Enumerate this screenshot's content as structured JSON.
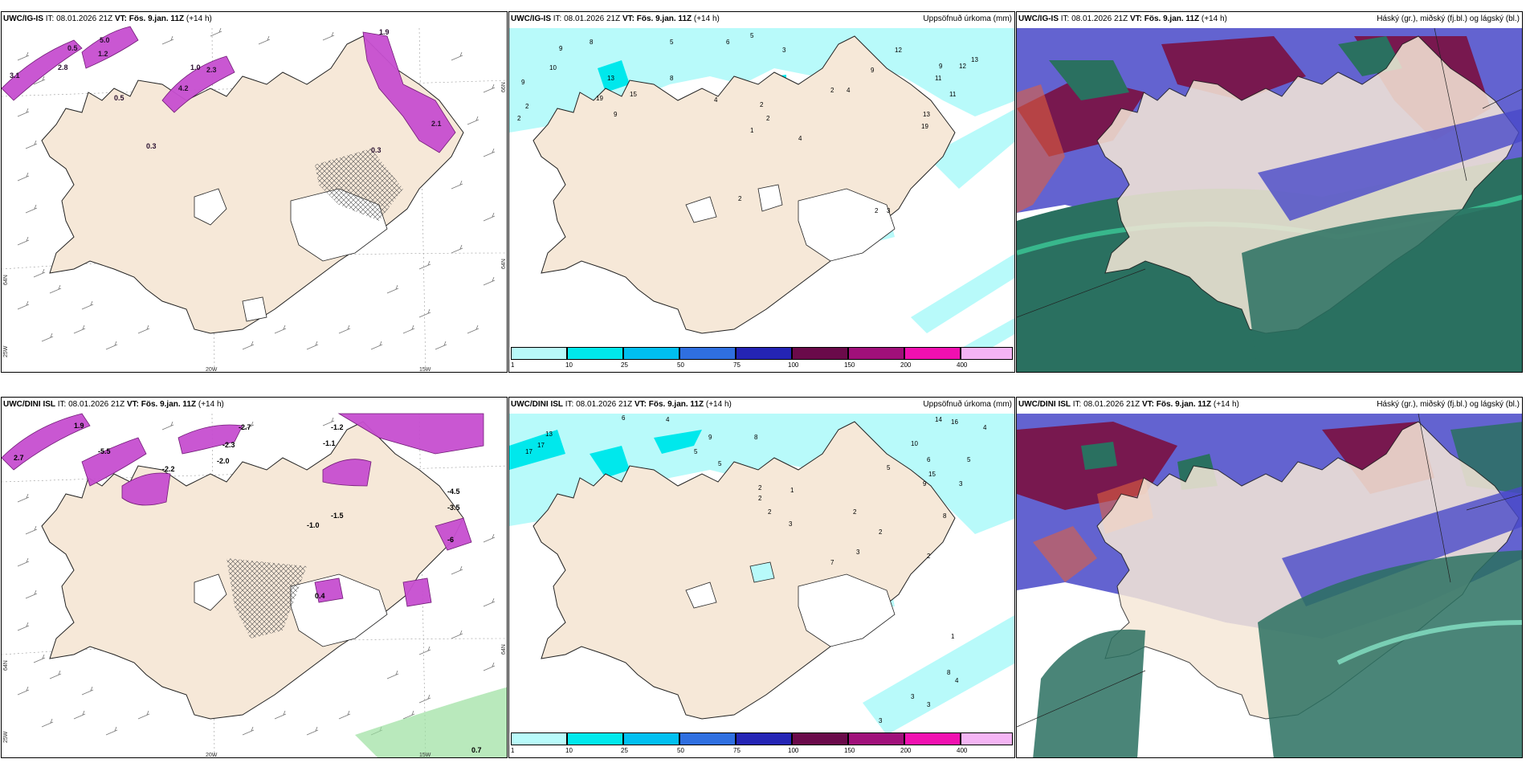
{
  "panels": [
    {
      "model": "UWC/IG-IS",
      "it_label": "IT:",
      "it": "08.01.2026 21Z",
      "vt_label": "VT:",
      "vt": "Fös. 9.jan. 11Z",
      "lead": "(+14 h)",
      "right": ""
    },
    {
      "model": "UWC/IG-IS",
      "it_label": "IT:",
      "it": "08.01.2026 21Z",
      "vt_label": "VT:",
      "vt": "Fös. 9.jan. 11Z",
      "lead": "(+14 h)",
      "right": "Uppsöfnuð úrkoma (mm)"
    },
    {
      "model": "UWC/IG-IS",
      "it_label": "IT:",
      "it": "08.01.2026 21Z",
      "vt_label": "VT:",
      "vt": "Fös. 9.jan. 11Z",
      "lead": "(+14 h)",
      "right": "Háský (gr.), miðský (fj.bl.) og lágský (bl.)"
    },
    {
      "model": "UWC/DINI ISL",
      "it_label": "IT:",
      "it": "08.01.2026 21Z",
      "vt_label": "VT:",
      "vt": "Fös. 9.jan. 11Z",
      "lead": "(+14 h)",
      "right": ""
    },
    {
      "model": "UWC/DINI ISL",
      "it_label": "IT:",
      "it": "08.01.2026 21Z",
      "vt_label": "VT:",
      "vt": "Fös. 9.jan. 11Z",
      "lead": "(+14 h)",
      "right": "Uppsöfnuð úrkoma (mm)"
    },
    {
      "model": "UWC/DINI ISL",
      "it_label": "IT:",
      "it": "08.01.2026 21Z",
      "vt_label": "VT:",
      "vt": "Fös. 9.jan. 11Z",
      "lead": "(+14 h)",
      "right": "Háský (gr.), miðský (fj.bl.) og lágský (bl.)"
    }
  ],
  "coords": {
    "lon_20w": "20W",
    "lon_15w": "15W",
    "lat_66n": "66N",
    "lat_64n": "64N",
    "lon_25w": "25W"
  },
  "colorbar": {
    "ticks": [
      "1",
      "10",
      "25",
      "50",
      "75",
      "100",
      "150",
      "200",
      "400"
    ],
    "colors": [
      "#b8fafa",
      "#00e8ec",
      "#00bff0",
      "#2f6fe0",
      "#2424b4",
      "#6a0a4a",
      "#a0107a",
      "#f010b0",
      "#f4b4f4"
    ]
  },
  "temp_labels_top": [
    "3.1",
    "2.8",
    "5.0",
    "0.5",
    "1.2",
    "2.3",
    "1.0",
    "4.2",
    "0.3",
    "2.1",
    "1.9",
    "0.5",
    "0.3"
  ],
  "temp_labels_bottom": [
    "1.9",
    "2.7",
    "-5.5",
    "-2.2",
    "-2.0",
    "-2.7",
    "-1.2",
    "-1.1",
    "-2.3",
    "-1.0",
    "-1.5",
    "-4.5",
    "-3.5",
    "-6",
    "0.4",
    "0.7"
  ],
  "precip_labels_top": [
    "9",
    "8",
    "10",
    "9",
    "2",
    "2",
    "19",
    "13",
    "15",
    "9",
    "8",
    "5",
    "3",
    "6",
    "4",
    "2",
    "1",
    "2",
    "4",
    "12",
    "9",
    "11",
    "13",
    "19",
    "12",
    "13",
    "11",
    "9",
    "4",
    "2",
    "5",
    "2",
    "2",
    "3"
  ],
  "precip_labels_bottom": [
    "13",
    "17",
    "17",
    "6",
    "4",
    "9",
    "8",
    "5",
    "5",
    "2",
    "2",
    "1",
    "2",
    "3",
    "2",
    "7",
    "3",
    "2",
    "6",
    "9",
    "5",
    "10",
    "8",
    "15",
    "14",
    "16",
    "4",
    "5",
    "3",
    "2",
    "1",
    "8",
    "4",
    "3",
    "3",
    "3"
  ],
  "colors": {
    "land": "#f6e8d8",
    "precip_light": "#b8fafa",
    "precip_mid": "#00e8ec",
    "snow_pink": "#c74fd0",
    "high_cloud": "#2a7060",
    "mid_cloud": "#7a1040",
    "low_cloud": "#4848c8"
  }
}
